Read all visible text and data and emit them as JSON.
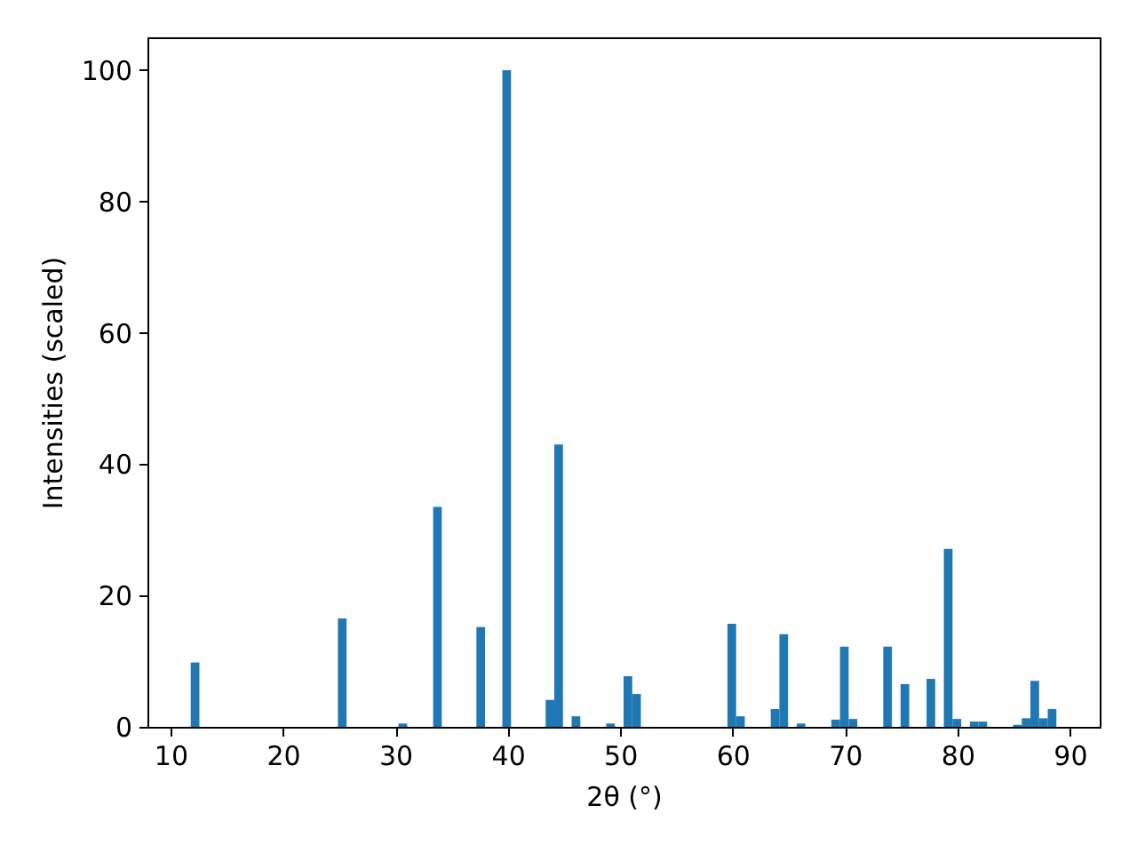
{
  "chart_data": {
    "type": "histogram",
    "xlabel": "2θ (°)",
    "ylabel": "Intensities (scaled)",
    "color": "#1f77b4",
    "bins": [
      11.8,
      12.57,
      13.34,
      14.11,
      14.88,
      15.65,
      16.42,
      17.19,
      17.96,
      18.73,
      19.5,
      20.27,
      21.04,
      21.81,
      22.58,
      23.35,
      24.12,
      24.89,
      25.66,
      26.43,
      27.2,
      27.97,
      28.74,
      29.51,
      30.28,
      31.05,
      31.82,
      32.59,
      33.36,
      34.13,
      34.9,
      35.67,
      36.44,
      37.21,
      37.98,
      38.75,
      39.52,
      40.29,
      41.06,
      41.83,
      42.6,
      43.37,
      44.14,
      44.91,
      45.68,
      46.45,
      47.22,
      47.99,
      48.76,
      49.53,
      50.3,
      51.07,
      51.84,
      52.61,
      53.38,
      54.15,
      54.92,
      55.69,
      56.46,
      57.23,
      58,
      58.77,
      59.54,
      60.31,
      61.08,
      61.85,
      62.62,
      63.39,
      64.16,
      64.93,
      65.7,
      66.47,
      67.24,
      68.01,
      68.78,
      69.55,
      70.32,
      71.09,
      71.86,
      72.63,
      73.4,
      74.17,
      74.94,
      75.71,
      76.48,
      77.25,
      78.02,
      78.79,
      79.56,
      80.33,
      81.1,
      81.87,
      82.64,
      83.41,
      84.18,
      84.95,
      85.72,
      86.49,
      87.26,
      88.03,
      88.8
    ],
    "values": [
      9.8,
      0,
      0,
      0,
      0,
      0,
      0,
      0,
      0,
      0,
      0,
      0,
      0,
      0,
      0,
      0,
      0,
      16.5,
      0,
      0,
      0,
      0,
      0,
      0,
      0.5,
      0,
      0,
      0,
      33.5,
      0,
      0,
      0,
      0,
      15.2,
      0,
      0,
      100,
      0,
      0,
      0,
      0,
      4.1,
      43,
      0,
      1.6,
      0,
      0,
      0,
      0.5,
      0,
      7.7,
      5,
      0,
      0,
      0,
      0,
      0,
      0,
      0,
      0,
      0,
      0,
      15.7,
      1.6,
      0,
      0,
      0,
      2.7,
      14.1,
      0,
      0.5,
      0,
      0,
      0,
      1.1,
      12.2,
      1.2,
      0,
      0,
      0,
      12.2,
      0,
      6.5,
      0,
      0,
      7.3,
      0,
      27.1,
      1.2,
      0,
      0.8,
      0.8,
      0,
      0,
      0,
      0.3,
      1.3,
      7,
      1.3,
      2.7
    ],
    "xlim": [
      7.95,
      92.65
    ],
    "ylim": [
      0,
      105
    ],
    "xticks": [
      10,
      20,
      30,
      40,
      50,
      60,
      70,
      80,
      90
    ],
    "yticks": [
      0,
      20,
      40,
      60,
      80,
      100
    ]
  }
}
